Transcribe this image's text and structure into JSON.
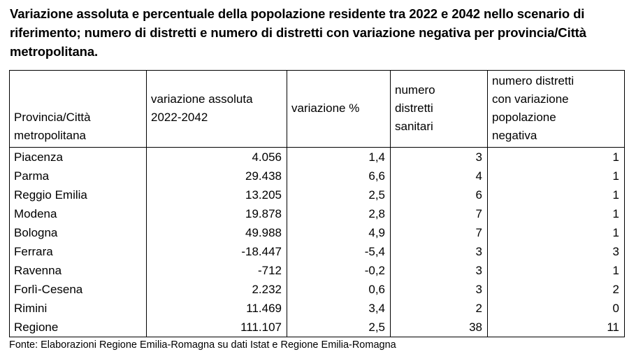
{
  "title": "Variazione assoluta e percentuale della popolazione residente tra 2022 e 2042 nello scenario di riferimento; numero di distretti e numero di distretti con variazione negativa per provincia/Città metropolitana.",
  "table": {
    "headers": [
      [
        "Provincia/Città",
        "metropolitana"
      ],
      [
        "variazione assoluta",
        "2022-2042"
      ],
      [
        "variazione %"
      ],
      [
        "numero",
        "distretti",
        "sanitari"
      ],
      [
        "numero distretti",
        "con variazione",
        "popolazione",
        "negativa"
      ]
    ],
    "rows": [
      [
        "Piacenza",
        "4.056",
        "1,4",
        "3",
        "1"
      ],
      [
        "Parma",
        "29.438",
        "6,6",
        "4",
        "1"
      ],
      [
        "Reggio Emilia",
        "13.205",
        "2,5",
        "6",
        "1"
      ],
      [
        "Modena",
        "19.878",
        "2,8",
        "7",
        "1"
      ],
      [
        "Bologna",
        "49.988",
        "4,9",
        "7",
        "1"
      ],
      [
        "Ferrara",
        "-18.447",
        "-5,4",
        "3",
        "3"
      ],
      [
        "Ravenna",
        "-712",
        "-0,2",
        "3",
        "1"
      ],
      [
        "Forlì-Cesena",
        "2.232",
        "0,6",
        "3",
        "2"
      ],
      [
        "Rimini",
        "11.469",
        "3,4",
        "2",
        "0"
      ],
      [
        "Regione",
        "111.107",
        "2,5",
        "38",
        "11"
      ]
    ]
  },
  "source": "Fonte: Elaborazioni Regione Emilia-Romagna su dati Istat e Regione Emilia-Romagna"
}
